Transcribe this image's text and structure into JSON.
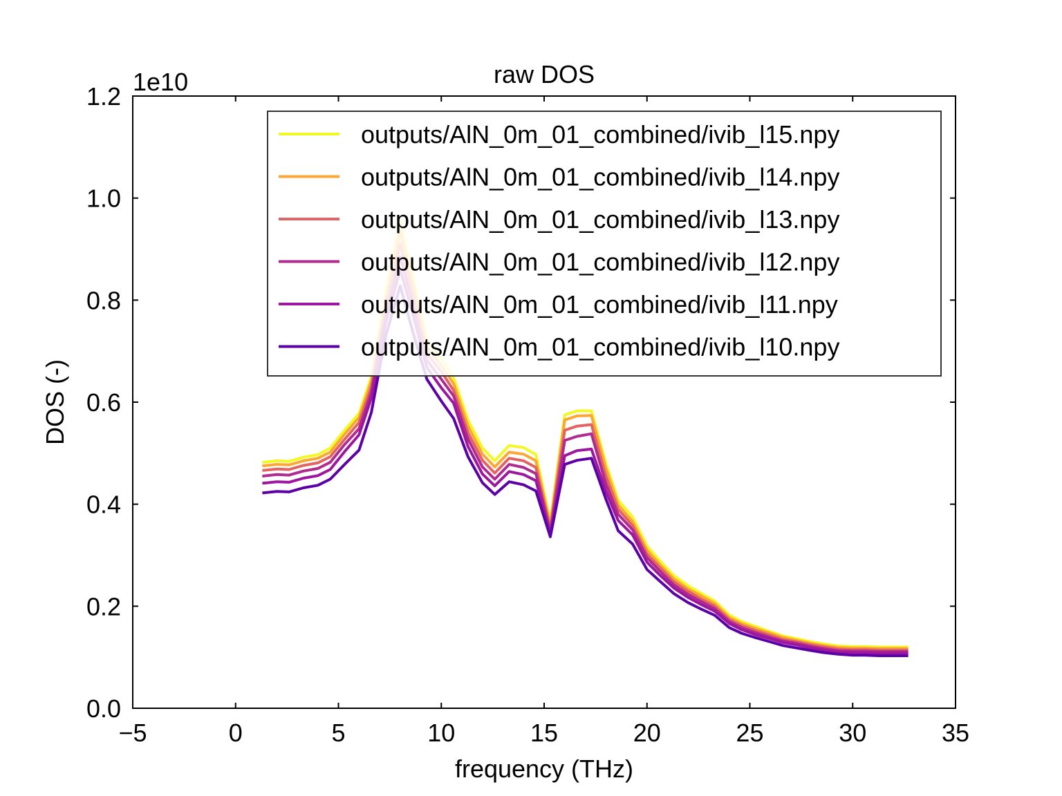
{
  "chart_data": {
    "type": "line",
    "title": "raw DOS",
    "xlabel": "frequency (THz)",
    "ylabel": "DOS (-)",
    "y_scale_label": "1e10",
    "xlim": [
      -5,
      35
    ],
    "ylim": [
      0,
      1.2
    ],
    "grid": false,
    "legend_position": "top-right",
    "x_ticks": [
      "−5",
      "0",
      "5",
      "10",
      "15",
      "20",
      "25",
      "30",
      "35"
    ],
    "x_tick_values": [
      -5,
      0,
      5,
      10,
      15,
      20,
      25,
      30,
      35
    ],
    "y_ticks": [
      "0.0",
      "0.2",
      "0.4",
      "0.6",
      "0.8",
      "1.0",
      "1.2"
    ],
    "y_tick_values": [
      0.0,
      0.2,
      0.4,
      0.6,
      0.8,
      1.0,
      1.2
    ],
    "x": [
      1.3,
      2.0,
      2.6,
      3.3,
      4.0,
      4.6,
      5.3,
      6.0,
      6.6,
      7.3,
      8.0,
      8.6,
      9.3,
      10.0,
      10.6,
      11.3,
      12.0,
      12.6,
      13.3,
      14.0,
      14.6,
      15.3,
      16.0,
      16.6,
      17.3,
      18.0,
      18.6,
      19.3,
      20.0,
      20.6,
      21.3,
      22.0,
      22.6,
      23.3,
      24.0,
      24.6,
      25.3,
      26.0,
      26.6,
      27.3,
      28.0,
      28.6,
      29.3,
      30.0,
      30.6,
      31.3,
      32.0,
      32.7
    ],
    "series": [
      {
        "name": "outputs/AlN_0m_01_combined/ivib_l15.npy",
        "color": "#f0f921",
        "values": [
          0.482,
          0.485,
          0.484,
          0.492,
          0.497,
          0.51,
          0.545,
          0.578,
          0.65,
          0.815,
          0.955,
          0.85,
          0.722,
          0.685,
          0.648,
          0.565,
          0.51,
          0.485,
          0.515,
          0.511,
          0.497,
          0.366,
          0.575,
          0.583,
          0.583,
          0.48,
          0.408,
          0.375,
          0.318,
          0.29,
          0.26,
          0.24,
          0.226,
          0.21,
          0.183,
          0.17,
          0.16,
          0.15,
          0.142,
          0.136,
          0.13,
          0.126,
          0.122,
          0.121,
          0.121,
          0.12,
          0.12,
          0.12
        ]
      },
      {
        "name": "outputs/AlN_0m_01_combined/ivib_l14.npy",
        "color": "#fca636",
        "values": [
          0.475,
          0.478,
          0.477,
          0.485,
          0.49,
          0.502,
          0.537,
          0.57,
          0.641,
          0.8,
          0.935,
          0.835,
          0.708,
          0.672,
          0.636,
          0.553,
          0.498,
          0.473,
          0.502,
          0.498,
          0.485,
          0.359,
          0.565,
          0.573,
          0.574,
          0.47,
          0.399,
          0.366,
          0.31,
          0.283,
          0.254,
          0.234,
          0.221,
          0.205,
          0.178,
          0.166,
          0.156,
          0.147,
          0.139,
          0.133,
          0.127,
          0.123,
          0.119,
          0.118,
          0.118,
          0.117,
          0.117,
          0.117
        ]
      },
      {
        "name": "outputs/AlN_0m_01_combined/ivib_l13.npy",
        "color": "#e16462",
        "values": [
          0.466,
          0.469,
          0.468,
          0.476,
          0.481,
          0.493,
          0.527,
          0.56,
          0.63,
          0.785,
          0.91,
          0.815,
          0.695,
          0.66,
          0.623,
          0.54,
          0.486,
          0.461,
          0.49,
          0.485,
          0.472,
          0.352,
          0.545,
          0.553,
          0.556,
          0.455,
          0.39,
          0.358,
          0.302,
          0.277,
          0.248,
          0.229,
          0.215,
          0.2,
          0.174,
          0.162,
          0.152,
          0.143,
          0.135,
          0.13,
          0.124,
          0.12,
          0.116,
          0.115,
          0.115,
          0.114,
          0.114,
          0.114
        ]
      },
      {
        "name": "outputs/AlN_0m_01_combined/ivib_l12.npy",
        "color": "#b12a90",
        "values": [
          0.455,
          0.458,
          0.457,
          0.465,
          0.47,
          0.482,
          0.517,
          0.548,
          0.62,
          0.77,
          0.885,
          0.795,
          0.682,
          0.645,
          0.612,
          0.528,
          0.473,
          0.449,
          0.478,
          0.472,
          0.46,
          0.346,
          0.525,
          0.533,
          0.538,
          0.44,
          0.38,
          0.35,
          0.295,
          0.27,
          0.242,
          0.223,
          0.21,
          0.195,
          0.17,
          0.158,
          0.148,
          0.139,
          0.132,
          0.127,
          0.121,
          0.117,
          0.113,
          0.112,
          0.112,
          0.111,
          0.111,
          0.111
        ]
      },
      {
        "name": "outputs/AlN_0m_01_combined/ivib_l11.npy",
        "color": "#9c179e",
        "values": [
          0.441,
          0.444,
          0.443,
          0.451,
          0.456,
          0.468,
          0.503,
          0.536,
          0.608,
          0.755,
          0.86,
          0.775,
          0.668,
          0.628,
          0.598,
          0.513,
          0.459,
          0.436,
          0.464,
          0.458,
          0.446,
          0.341,
          0.495,
          0.505,
          0.508,
          0.425,
          0.368,
          0.34,
          0.286,
          0.262,
          0.236,
          0.217,
          0.204,
          0.19,
          0.166,
          0.154,
          0.144,
          0.136,
          0.129,
          0.124,
          0.118,
          0.114,
          0.11,
          0.109,
          0.109,
          0.108,
          0.108,
          0.108
        ]
      },
      {
        "name": "outputs/AlN_0m_01_combined/ivib_l10.npy",
        "color": "#5c01a6",
        "values": [
          0.422,
          0.425,
          0.424,
          0.432,
          0.437,
          0.449,
          0.478,
          0.506,
          0.58,
          0.73,
          0.828,
          0.74,
          0.645,
          0.602,
          0.568,
          0.493,
          0.442,
          0.419,
          0.444,
          0.438,
          0.426,
          0.336,
          0.478,
          0.486,
          0.49,
          0.41,
          0.348,
          0.322,
          0.272,
          0.25,
          0.225,
          0.207,
          0.195,
          0.182,
          0.158,
          0.147,
          0.138,
          0.13,
          0.123,
          0.118,
          0.113,
          0.109,
          0.106,
          0.104,
          0.104,
          0.103,
          0.103,
          0.103
        ]
      }
    ]
  }
}
